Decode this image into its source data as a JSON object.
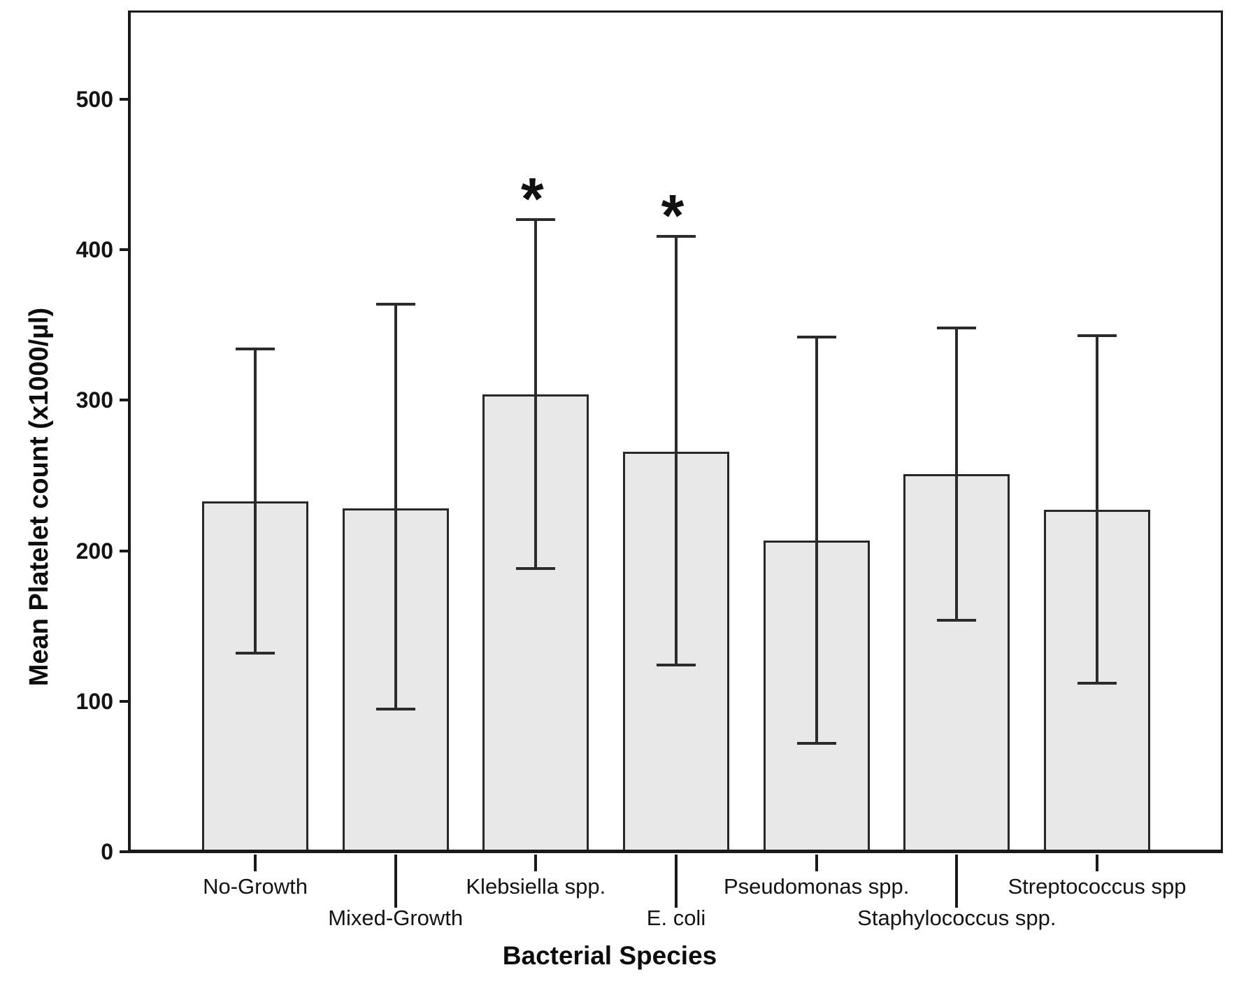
{
  "chart_data": {
    "type": "bar",
    "title": "",
    "xlabel": "Bacterial Species",
    "ylabel": "Mean Platelet count (x1000/µl)",
    "ylim": [
      0,
      558
    ],
    "yticks": [
      0,
      100,
      200,
      300,
      400,
      500
    ],
    "grid": false,
    "legend": "none",
    "error_bars": "whiskers with caps, mean ± bounds shown below",
    "categories": [
      "No-Growth",
      "Mixed-Growth",
      "Klebsiella spp.",
      "E. coli",
      "Pseudomonas spp.",
      "Staphylococcus spp.",
      "Streptococcus spp"
    ],
    "values": [
      233,
      228,
      304,
      266,
      207,
      251,
      227
    ],
    "error_high": [
      334,
      364,
      420,
      409,
      342,
      348,
      343
    ],
    "error_low": [
      132,
      95,
      188,
      124,
      72,
      154,
      112
    ],
    "significance": [
      "",
      "",
      "*",
      "*",
      "",
      "",
      ""
    ],
    "label_rows": [
      1,
      2,
      1,
      2,
      1,
      2,
      1
    ],
    "bar_fill": "#e8e8e8",
    "bar_border": "#282828",
    "axis_color": "#1a1a1a"
  }
}
